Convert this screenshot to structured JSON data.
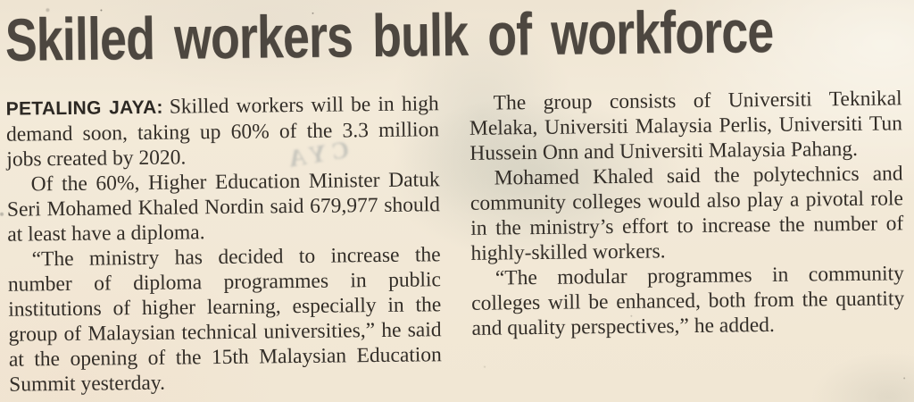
{
  "document_type": "newspaper clipping (scan)",
  "article": {
    "headline": "Skilled workers bulk of workforce",
    "dateline": "PETALING JAYA:",
    "columns": {
      "left": [
        "Skilled workers will be in high demand soon, taking up 60% of the 3.3 million jobs created by 2020.",
        "Of the 60%, Higher Education Minister Datuk Seri Mohamed Khaled Nordin said 679,977 should at least have a diploma.",
        "“The ministry has decided to increase the number of diploma programmes in public institutions of higher learning, especially in the group of Malaysian technical universities,” he said at the opening of the 15th Malaysian Education Summit yesterday."
      ],
      "right": [
        "The group consists of Universiti Teknikal Melaka, Universiti Malaysia Perlis, Universiti Tun Hussein Onn and Universiti Malaysia Pahang.",
        "Mohamed Khaled said the polytechnics and community colleges would also play a pivotal role in the ministry’s effort to increase the number of highly-skilled workers.",
        "“The modular programmes in community colleges will be enhanced, both from the quantity and quality perspectives,” he added."
      ]
    }
  },
  "ghost_text": "CYA",
  "colors": {
    "paper": "#f2e9d8",
    "body_ink": "#332e28",
    "headline_ink": "#4d4740",
    "show_through_wash": "#dfe0d4"
  }
}
